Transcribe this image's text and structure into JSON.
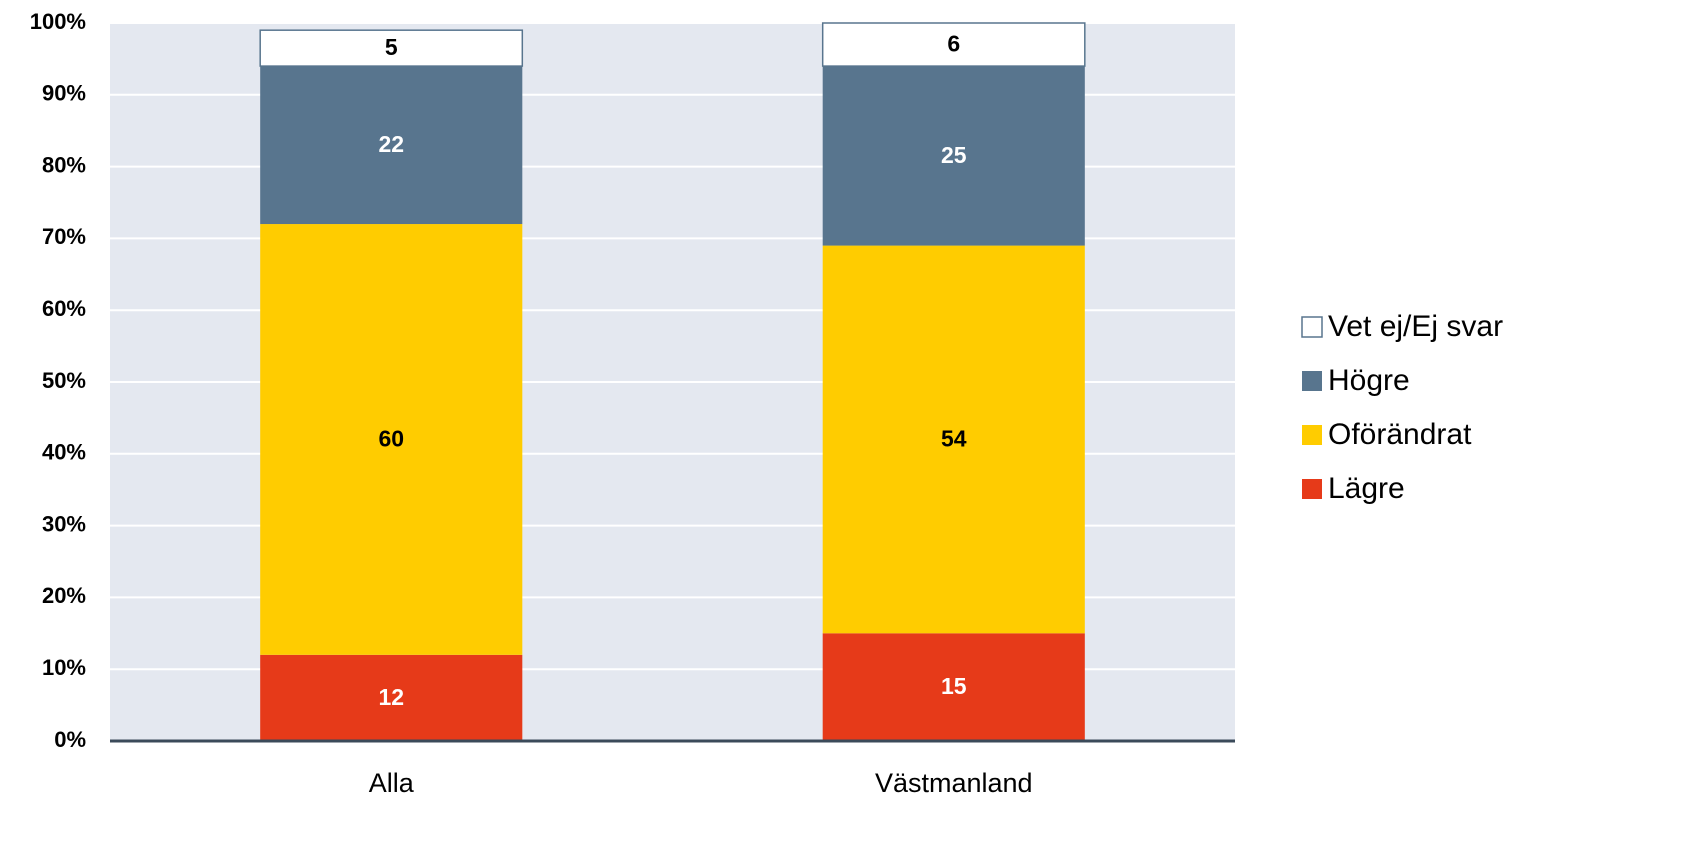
{
  "chart_data": {
    "type": "bar",
    "stacked": true,
    "categories": [
      "Alla",
      "Västmanland"
    ],
    "series": [
      {
        "name": "Lägre",
        "color": "#e63a19",
        "values": [
          12,
          15
        ]
      },
      {
        "name": "Oförändrat",
        "color": "#ffcc00",
        "values": [
          60,
          54
        ]
      },
      {
        "name": "Högre",
        "color": "#58758e",
        "values": [
          22,
          25
        ]
      },
      {
        "name": "Vet ej/Ej svar",
        "color": "#ffffff",
        "values": [
          5,
          6
        ]
      }
    ],
    "ylim": [
      0,
      100
    ],
    "yticks": [
      {
        "value": 0,
        "label": "0%"
      },
      {
        "value": 10,
        "label": "10%"
      },
      {
        "value": 20,
        "label": "20%"
      },
      {
        "value": 30,
        "label": "30%"
      },
      {
        "value": 40,
        "label": "40%"
      },
      {
        "value": 50,
        "label": "50%"
      },
      {
        "value": 60,
        "label": "60%"
      },
      {
        "value": 70,
        "label": "70%"
      },
      {
        "value": 80,
        "label": "80%"
      },
      {
        "value": 90,
        "label": "90%"
      },
      {
        "value": 100,
        "label": "100%"
      }
    ],
    "grid": true,
    "legend": "right"
  }
}
